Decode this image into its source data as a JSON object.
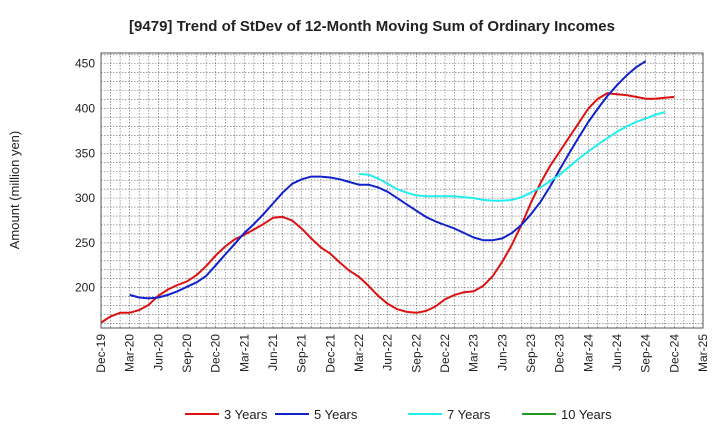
{
  "chart_data": {
    "type": "line",
    "title": "[9479]  Trend of StDev of 12-Month Moving Sum of Ordinary Incomes",
    "xlabel": "",
    "ylabel": "Amount (million yen)",
    "ylim": [
      155,
      462
    ],
    "yticks": [
      200,
      250,
      300,
      350,
      400,
      450
    ],
    "x_tick_labels": [
      "Dec-19",
      "Mar-20",
      "Jun-20",
      "Sep-20",
      "Dec-20",
      "Mar-21",
      "Jun-21",
      "Sep-21",
      "Dec-21",
      "Mar-22",
      "Jun-22",
      "Sep-22",
      "Dec-22",
      "Mar-23",
      "Jun-23",
      "Sep-23",
      "Dec-23",
      "Mar-24",
      "Jun-24",
      "Sep-24",
      "Dec-24",
      "Mar-25"
    ],
    "grid": true,
    "legend_position": "bottom",
    "series": [
      {
        "name": "3 Years",
        "color": "#dd1111",
        "start_month_index": 0,
        "values": [
          161,
          168,
          172,
          172,
          175,
          181,
          191,
          198,
          203,
          207,
          214,
          224,
          236,
          246,
          254,
          259,
          265,
          271,
          278,
          279,
          275,
          266,
          255,
          245,
          238,
          228,
          219,
          212,
          202,
          191,
          182,
          176,
          173,
          172,
          174,
          179,
          187,
          192,
          195,
          196,
          202,
          213,
          229,
          248,
          270,
          295,
          317,
          336,
          352,
          368,
          384,
          400,
          411,
          417,
          416,
          415,
          413,
          411,
          411,
          412,
          413
        ],
        "pointsLabel": ""
      },
      {
        "name": "5 Years",
        "color": "#1122cc",
        "start_month_index": 3,
        "values": [
          192,
          189,
          188,
          189,
          192,
          196,
          201,
          206,
          213,
          225,
          237,
          249,
          261,
          271,
          282,
          294,
          306,
          316,
          321,
          324,
          324,
          323,
          321,
          318,
          315,
          315,
          312,
          307,
          300,
          293,
          286,
          279,
          274,
          270,
          266,
          261,
          256,
          253,
          253,
          255,
          261,
          270,
          282,
          296,
          313,
          332,
          350,
          368,
          385,
          400,
          414,
          426,
          437,
          446,
          453
        ]
      },
      {
        "name": "7 Years",
        "color": "#22eeee",
        "start_month_index": 27,
        "values": [
          327,
          326,
          322,
          316,
          310,
          306,
          303,
          302,
          302,
          302,
          302,
          301,
          300,
          298,
          297,
          297,
          298,
          301,
          306,
          312,
          319,
          326,
          335,
          344,
          352,
          360,
          367,
          374,
          380,
          385,
          389,
          393,
          396
        ]
      },
      {
        "name": "10 Years",
        "color": "#229922",
        "start_month_index": 0,
        "values": []
      }
    ]
  }
}
